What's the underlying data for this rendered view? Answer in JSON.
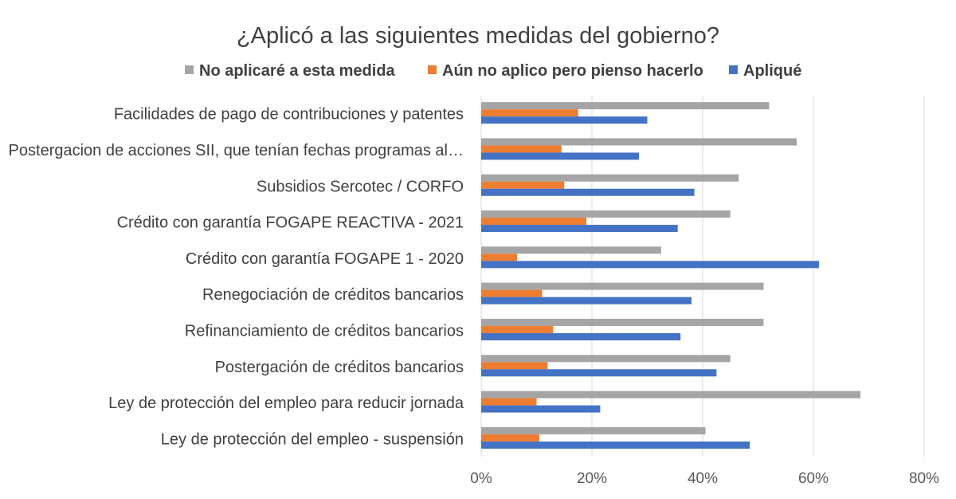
{
  "chart_data": {
    "type": "bar",
    "orientation": "horizontal",
    "title": "¿Aplicó a las siguientes medidas del gobierno?",
    "legend_position": "top",
    "categories": [
      "Facilidades de pago de contribuciones y patentes",
      "Postergacion de acciones SII, que tenían fechas programas al…",
      "Subsidios Sercotec / CORFO",
      "Crédito con garantía FOGAPE REACTIVA - 2021",
      "Crédito con garantía FOGAPE 1 - 2020",
      "Renegociación de créditos bancarios",
      "Refinanciamiento de créditos bancarios",
      "Postergación de créditos bancarios",
      "Ley de protección del empleo para reducir jornada",
      "Ley de protección del empleo - suspensión"
    ],
    "series": [
      {
        "name": "No aplicaré a esta medida",
        "color": "#a5a5a5",
        "values": [
          52,
          57,
          46.5,
          45,
          32.5,
          51,
          51,
          45,
          68.5,
          40.5
        ]
      },
      {
        "name": "Aún no aplico pero pienso hacerlo",
        "color": "#ed7d31",
        "values": [
          17.5,
          14.5,
          15,
          19,
          6.5,
          11,
          13,
          12,
          10,
          10.5
        ]
      },
      {
        "name": "Apliqué",
        "color": "#4472c4",
        "values": [
          30,
          28.5,
          38.5,
          35.5,
          61,
          38,
          36,
          42.5,
          21.5,
          48.5
        ]
      }
    ],
    "xlim": [
      0,
      80
    ],
    "xticks": [
      "0%",
      "20%",
      "40%",
      "60%",
      "80%"
    ],
    "grid": true,
    "xlabel": "",
    "ylabel": ""
  }
}
